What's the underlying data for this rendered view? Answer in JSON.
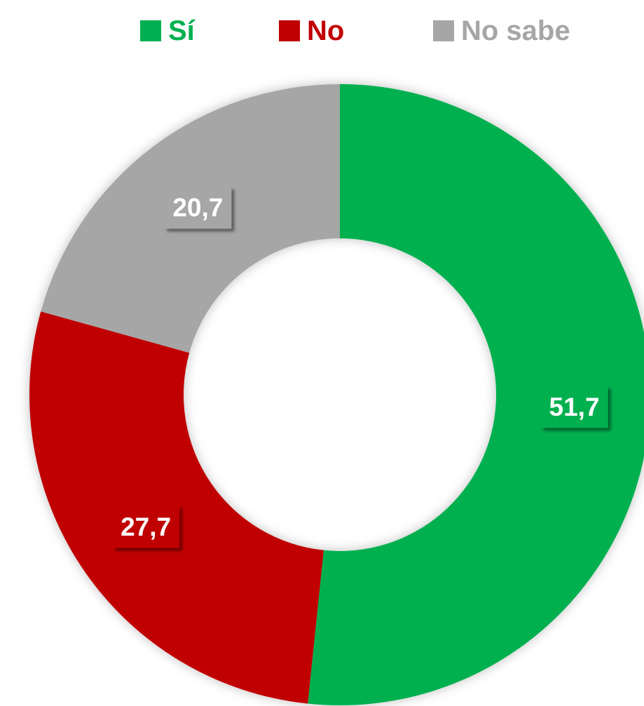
{
  "chart_data": {
    "type": "donut",
    "categories": [
      "Sí",
      "No",
      "No sabe"
    ],
    "values": [
      51.7,
      27.7,
      20.7
    ],
    "value_labels": [
      "51,7",
      "27,7",
      "20,7"
    ],
    "colors": [
      "#00b050",
      "#c00000",
      "#a6a6a6"
    ],
    "legend": "top"
  }
}
